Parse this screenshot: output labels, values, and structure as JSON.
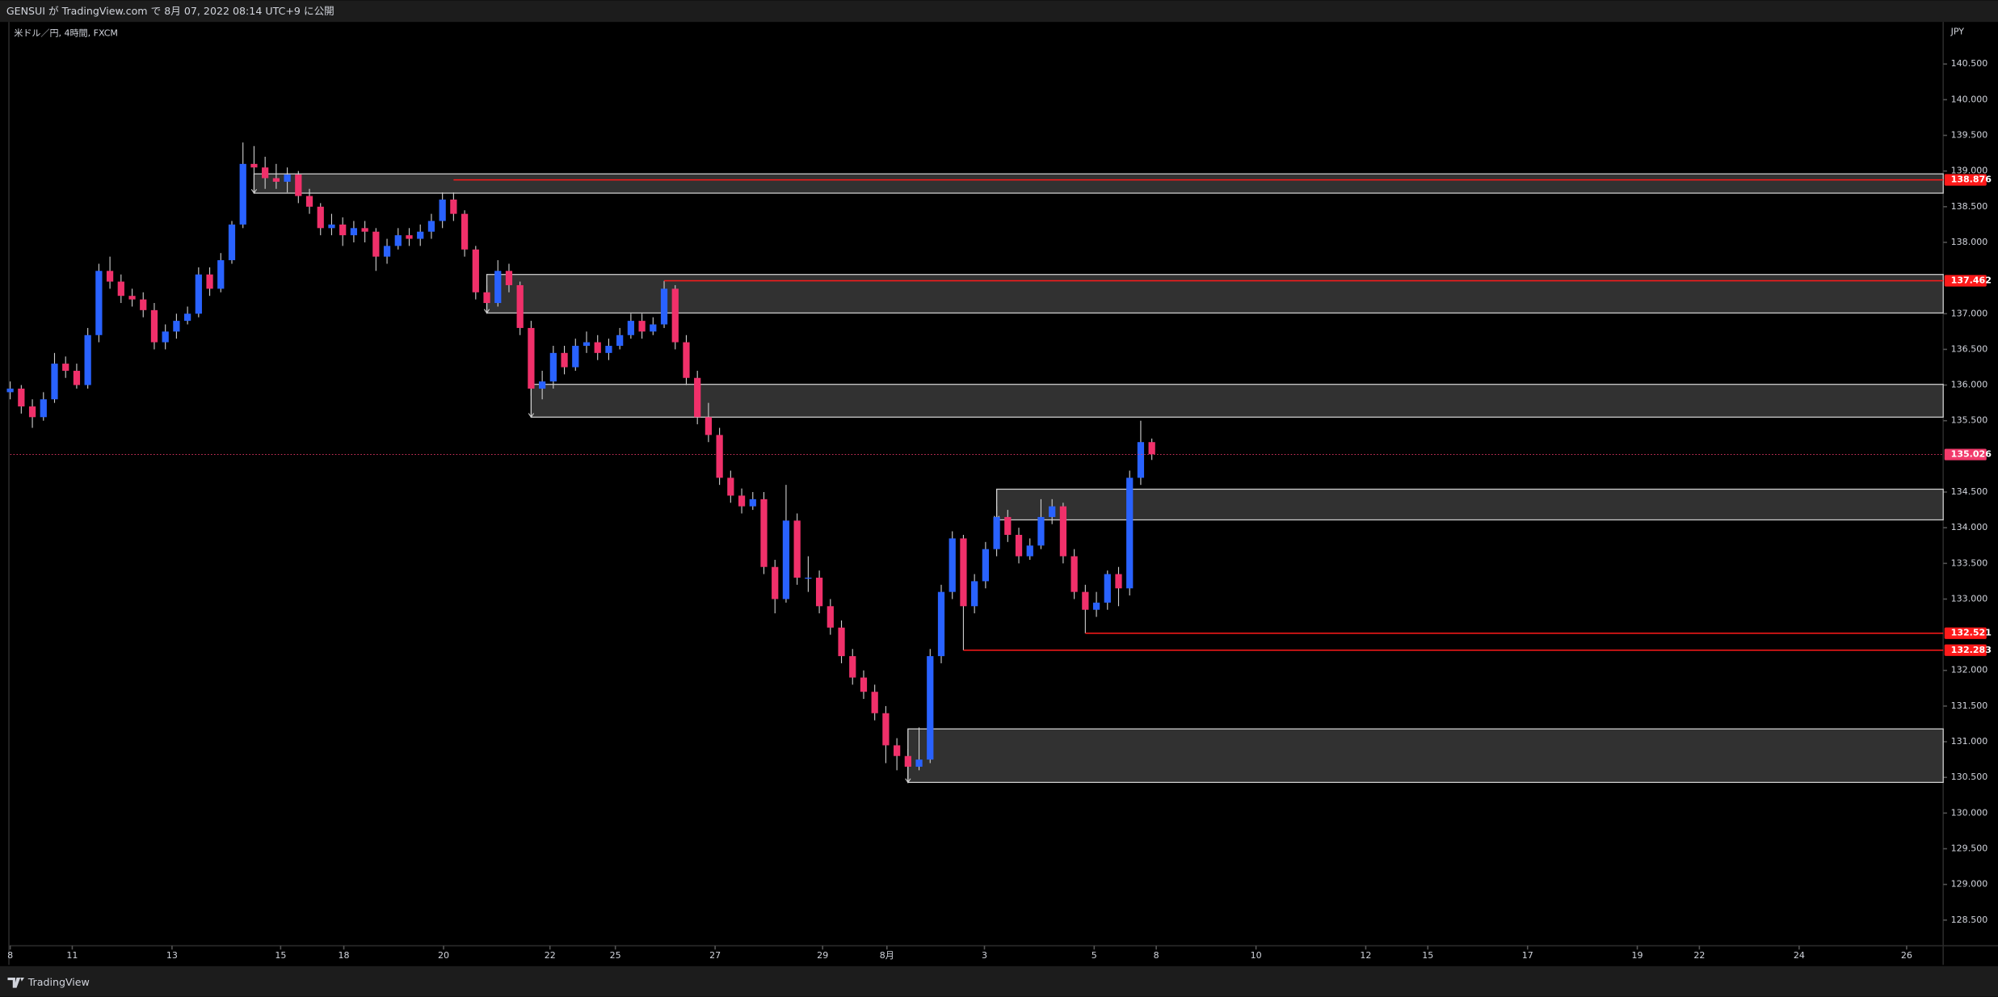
{
  "header": {
    "publisher": "GENSUI が TradingView.com で 8月 07, 2022 08:14 UTC+9 に公開"
  },
  "footer": {
    "brand": "TradingView"
  },
  "chart_data": {
    "type": "candlestick",
    "title": "米ドル／円, 4時間, FXCM",
    "currency": "JPY",
    "up_color": "#2962ff",
    "down_color": "#f0306a",
    "ohlc": [
      [
        135.9,
        136.05,
        135.8,
        135.95
      ],
      [
        135.95,
        136.0,
        135.6,
        135.7
      ],
      [
        135.7,
        135.8,
        135.4,
        135.55
      ],
      [
        135.55,
        135.9,
        135.5,
        135.8
      ],
      [
        135.8,
        136.45,
        135.75,
        136.3
      ],
      [
        136.3,
        136.4,
        136.1,
        136.2
      ],
      [
        136.2,
        136.3,
        135.95,
        136.0
      ],
      [
        136.0,
        136.8,
        135.95,
        136.7
      ],
      [
        136.7,
        137.7,
        136.6,
        137.6
      ],
      [
        137.6,
        137.8,
        137.35,
        137.45
      ],
      [
        137.45,
        137.55,
        137.15,
        137.25
      ],
      [
        137.25,
        137.35,
        137.1,
        137.2
      ],
      [
        137.2,
        137.3,
        136.95,
        137.05
      ],
      [
        137.05,
        137.15,
        136.5,
        136.6
      ],
      [
        136.6,
        136.85,
        136.5,
        136.75
      ],
      [
        136.75,
        137.0,
        136.65,
        136.9
      ],
      [
        136.9,
        137.1,
        136.85,
        137.0
      ],
      [
        137.0,
        137.65,
        136.95,
        137.55
      ],
      [
        137.55,
        137.65,
        137.25,
        137.35
      ],
      [
        137.35,
        137.85,
        137.3,
        137.75
      ],
      [
        137.75,
        138.3,
        137.7,
        138.25
      ],
      [
        138.25,
        139.4,
        138.2,
        139.1
      ],
      [
        139.1,
        139.35,
        138.95,
        139.05
      ],
      [
        139.05,
        139.2,
        138.75,
        138.9
      ],
      [
        138.9,
        139.1,
        138.75,
        138.85
      ],
      [
        138.85,
        139.05,
        138.7,
        138.95
      ],
      [
        138.95,
        139.0,
        138.55,
        138.65
      ],
      [
        138.65,
        138.75,
        138.4,
        138.5
      ],
      [
        138.5,
        138.55,
        138.1,
        138.2
      ],
      [
        138.2,
        138.4,
        138.1,
        138.25
      ],
      [
        138.25,
        138.35,
        137.95,
        138.1
      ],
      [
        138.1,
        138.3,
        138.0,
        138.2
      ],
      [
        138.2,
        138.3,
        138.0,
        138.15
      ],
      [
        138.15,
        138.2,
        137.6,
        137.8
      ],
      [
        137.8,
        138.05,
        137.7,
        137.95
      ],
      [
        137.95,
        138.2,
        137.9,
        138.1
      ],
      [
        138.1,
        138.2,
        137.95,
        138.05
      ],
      [
        138.05,
        138.25,
        137.95,
        138.15
      ],
      [
        138.15,
        138.4,
        138.05,
        138.3
      ],
      [
        138.3,
        138.7,
        138.2,
        138.6
      ],
      [
        138.6,
        138.7,
        138.3,
        138.4
      ],
      [
        138.4,
        138.45,
        137.8,
        137.9
      ],
      [
        137.9,
        137.95,
        137.2,
        137.3
      ],
      [
        137.3,
        137.4,
        137.0,
        137.15
      ],
      [
        137.15,
        137.75,
        137.1,
        137.6
      ],
      [
        137.6,
        137.7,
        137.3,
        137.4
      ],
      [
        137.4,
        137.45,
        136.7,
        136.8
      ],
      [
        136.8,
        136.9,
        135.85,
        135.95
      ],
      [
        135.95,
        136.2,
        135.8,
        136.05
      ],
      [
        136.05,
        136.55,
        135.95,
        136.45
      ],
      [
        136.45,
        136.55,
        136.15,
        136.25
      ],
      [
        136.25,
        136.65,
        136.2,
        136.55
      ],
      [
        136.55,
        136.75,
        136.45,
        136.6
      ],
      [
        136.6,
        136.7,
        136.35,
        136.45
      ],
      [
        136.45,
        136.65,
        136.35,
        136.55
      ],
      [
        136.55,
        136.8,
        136.5,
        136.7
      ],
      [
        136.7,
        137.0,
        136.65,
        136.9
      ],
      [
        136.9,
        137.0,
        136.65,
        136.75
      ],
      [
        136.75,
        136.95,
        136.7,
        136.85
      ],
      [
        136.85,
        137.46,
        136.8,
        137.35
      ],
      [
        137.35,
        137.4,
        136.5,
        136.6
      ],
      [
        136.6,
        136.7,
        136.0,
        136.1
      ],
      [
        136.1,
        136.2,
        135.45,
        135.55
      ],
      [
        135.55,
        135.75,
        135.2,
        135.3
      ],
      [
        135.3,
        135.4,
        134.6,
        134.7
      ],
      [
        134.7,
        134.8,
        134.35,
        134.45
      ],
      [
        134.45,
        134.55,
        134.2,
        134.3
      ],
      [
        134.3,
        134.5,
        134.25,
        134.4
      ],
      [
        134.4,
        134.5,
        133.35,
        133.45
      ],
      [
        133.45,
        133.55,
        132.8,
        133.0
      ],
      [
        133.0,
        134.6,
        132.95,
        134.1
      ],
      [
        134.1,
        134.2,
        133.2,
        133.3
      ],
      [
        133.3,
        133.6,
        133.1,
        133.3
      ],
      [
        133.3,
        133.4,
        132.8,
        132.9
      ],
      [
        132.9,
        133.0,
        132.5,
        132.6
      ],
      [
        132.6,
        132.7,
        132.1,
        132.2
      ],
      [
        132.2,
        132.3,
        131.8,
        131.9
      ],
      [
        131.9,
        132.0,
        131.6,
        131.7
      ],
      [
        131.7,
        131.8,
        131.3,
        131.4
      ],
      [
        131.4,
        131.5,
        130.7,
        130.95
      ],
      [
        130.95,
        131.05,
        130.6,
        130.8
      ],
      [
        130.8,
        130.9,
        130.42,
        130.65
      ],
      [
        130.65,
        131.2,
        130.6,
        130.75
      ],
      [
        130.75,
        132.3,
        130.7,
        132.2
      ],
      [
        132.2,
        133.2,
        132.1,
        133.1
      ],
      [
        133.1,
        133.95,
        133.0,
        133.85
      ],
      [
        133.85,
        133.9,
        132.28,
        132.9
      ],
      [
        132.9,
        133.35,
        132.8,
        133.25
      ],
      [
        133.25,
        133.8,
        133.15,
        133.7
      ],
      [
        133.7,
        134.3,
        133.6,
        134.15
      ],
      [
        134.15,
        134.25,
        133.8,
        133.9
      ],
      [
        133.9,
        134.0,
        133.5,
        133.6
      ],
      [
        133.6,
        133.85,
        133.55,
        133.75
      ],
      [
        133.75,
        134.4,
        133.7,
        134.15
      ],
      [
        134.15,
        134.4,
        134.05,
        134.3
      ],
      [
        134.3,
        134.35,
        133.5,
        133.6
      ],
      [
        133.6,
        133.7,
        133.0,
        133.1
      ],
      [
        133.1,
        133.2,
        132.52,
        132.85
      ],
      [
        132.85,
        133.1,
        132.75,
        132.95
      ],
      [
        132.95,
        133.4,
        132.85,
        133.35
      ],
      [
        133.35,
        133.45,
        132.9,
        133.15
      ],
      [
        133.15,
        134.8,
        133.05,
        134.7
      ],
      [
        134.7,
        135.5,
        134.6,
        135.2
      ],
      [
        135.2,
        135.25,
        134.95,
        135.03
      ]
    ],
    "xlim": [
      0,
      174.4
    ],
    "xticks": [
      {
        "value": 0,
        "label": "8"
      },
      {
        "value": 5.6,
        "label": "11"
      },
      {
        "value": 14.6,
        "label": "13"
      },
      {
        "value": 24.4,
        "label": "15"
      },
      {
        "value": 30.1,
        "label": "18"
      },
      {
        "value": 39.1,
        "label": "20"
      },
      {
        "value": 48.7,
        "label": "22"
      },
      {
        "value": 54.6,
        "label": "25"
      },
      {
        "value": 63.6,
        "label": "27"
      },
      {
        "value": 73.3,
        "label": "29"
      },
      {
        "value": 79.1,
        "label": "8月"
      },
      {
        "value": 87.9,
        "label": "3"
      },
      {
        "value": 97.8,
        "label": "5"
      },
      {
        "value": 103.4,
        "label": "8"
      },
      {
        "value": 112.4,
        "label": "10"
      },
      {
        "value": 122.3,
        "label": "12"
      },
      {
        "value": 127.9,
        "label": "15"
      },
      {
        "value": 136.9,
        "label": "17"
      },
      {
        "value": 146.8,
        "label": "19"
      },
      {
        "value": 152.4,
        "label": "22"
      },
      {
        "value": 161.4,
        "label": "24"
      },
      {
        "value": 171.1,
        "label": "26"
      }
    ],
    "ylim": [
      128.14,
      141.09
    ],
    "yticks": [
      {
        "value": 128.5,
        "label": "128.500"
      },
      {
        "value": 129,
        "label": "129.000"
      },
      {
        "value": 129.5,
        "label": "129.500"
      },
      {
        "value": 130,
        "label": "130.000"
      },
      {
        "value": 130.5,
        "label": "130.500"
      },
      {
        "value": 131,
        "label": "131.000"
      },
      {
        "value": 131.5,
        "label": "131.500"
      },
      {
        "value": 132,
        "label": "132.000"
      },
      {
        "value": 133,
        "label": "133.000"
      },
      {
        "value": 133.5,
        "label": "133.500"
      },
      {
        "value": 134,
        "label": "134.000"
      },
      {
        "value": 134.5,
        "label": "134.500"
      },
      {
        "value": 135.5,
        "label": "135.500"
      },
      {
        "value": 136,
        "label": "136.000"
      },
      {
        "value": 136.5,
        "label": "136.500"
      },
      {
        "value": 137,
        "label": "137.000"
      },
      {
        "value": 138,
        "label": "138.000"
      },
      {
        "value": 138.5,
        "label": "138.500"
      },
      {
        "value": 139,
        "label": "139.000"
      },
      {
        "value": 139.5,
        "label": "139.500"
      },
      {
        "value": 140,
        "label": "140.000"
      },
      {
        "value": 140.5,
        "label": "140.500"
      }
    ],
    "zones": [
      {
        "start": 22,
        "low": 138.69,
        "high": 138.96
      },
      {
        "start": 43,
        "low": 137.01,
        "high": 137.55
      },
      {
        "start": 47,
        "low": 135.55,
        "high": 136.01
      },
      {
        "start": 89,
        "low": 134.11,
        "high": 134.54
      },
      {
        "start": 81,
        "low": 130.43,
        "high": 131.18
      }
    ],
    "levels": [
      {
        "start": 40,
        "value": 138.876,
        "color": "#ff1a1a"
      },
      {
        "start": 59,
        "value": 137.462,
        "color": "#ff1a1a"
      },
      {
        "start": 97,
        "value": 132.521,
        "color": "#ff1a1a"
      },
      {
        "start": 86,
        "value": 132.283,
        "color": "#ff1a1a"
      }
    ],
    "last_price": {
      "value": 135.026,
      "color": "#f23a6b"
    }
  }
}
